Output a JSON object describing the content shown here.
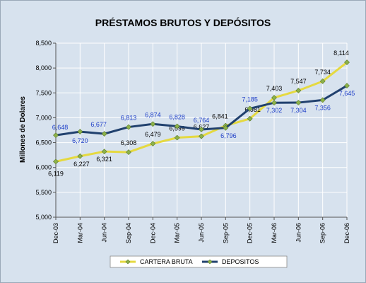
{
  "chart_data": {
    "type": "line",
    "title": "PRÉSTAMOS BRUTOS Y DEPÓSITOS",
    "xlabel": "",
    "ylabel": "Millones de Dolares",
    "ylim": [
      5000,
      8500
    ],
    "yticks": [
      5000,
      5500,
      6000,
      6500,
      7000,
      7500,
      8000,
      8500
    ],
    "ytick_labels": [
      "5,000",
      "5,500",
      "6,000",
      "6,500",
      "7,000",
      "7,500",
      "8,000",
      "8,500"
    ],
    "categories": [
      "Dec-03",
      "Mar-04",
      "Jun-04",
      "Sep-04",
      "Dec-04",
      "Mar-05",
      "Jun-05",
      "Sep-05",
      "Dec-05",
      "Mar-06",
      "Jun-06",
      "Sep-06",
      "Dec-06"
    ],
    "grid": true,
    "legend_position": "bottom",
    "series": [
      {
        "name": "CARTERA BRUTA",
        "color": "#e5d940",
        "marker_color": "#8db24a",
        "label_color": "#000000",
        "values": [
          6119,
          6227,
          6321,
          6308,
          6479,
          6599,
          6627,
          6841,
          6981,
          7403,
          7547,
          7734,
          8114
        ],
        "labels": [
          "6,119",
          "6,227",
          "6,321",
          "6,308",
          "6,479",
          "6,599",
          "6,627",
          "6,841",
          "6,981",
          "7,403",
          "7,547",
          "7,734",
          "8,114"
        ]
      },
      {
        "name": "DEPOSITOS",
        "color": "#21416e",
        "marker_color": "#8db24a",
        "label_color": "#1f3fc8",
        "values": [
          6648,
          6720,
          6677,
          6813,
          6874,
          6828,
          6764,
          6796,
          7185,
          7302,
          7304,
          7356,
          7645
        ],
        "labels": [
          "6,648",
          "6,720",
          "6,677",
          "6,813",
          "6,874",
          "6,828",
          "6,764",
          "6,796",
          "7,185",
          "7,302",
          "7,304",
          "7,356",
          "7,645"
        ]
      }
    ]
  }
}
